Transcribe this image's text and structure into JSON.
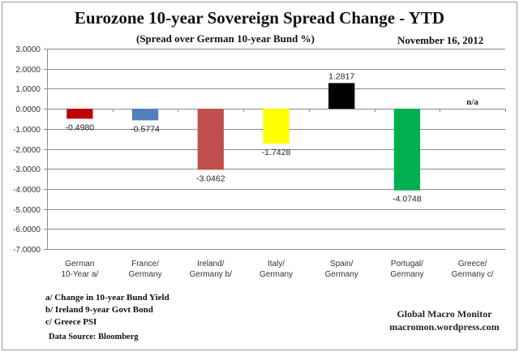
{
  "chart_data": {
    "type": "bar",
    "title": "Eurozone 10-year Sovereign Spread Change - YTD",
    "subtitle": "(Spread over German 10-year Bund %)",
    "date": "November 16,  2012",
    "xlabel": "",
    "ylabel": "",
    "ylim": [
      -7,
      3
    ],
    "ytick_step": 1,
    "ytick_format_decimals": 4,
    "grid": true,
    "legend": "none",
    "categories": [
      [
        "German",
        "10-Year a/"
      ],
      [
        "France/",
        "Germany"
      ],
      [
        "Ireland/",
        "Germany b/"
      ],
      [
        "Italy/",
        "Germany"
      ],
      [
        "Spain/",
        "Germany"
      ],
      [
        "Portugal/",
        "Germany"
      ],
      [
        "Greece/",
        "Germany c/"
      ]
    ],
    "values": [
      -0.498,
      -0.5774,
      -3.0462,
      -1.7428,
      1.2817,
      -4.0748,
      null
    ],
    "data_labels": [
      "-0.4980",
      "-0.5774",
      "-3.0462",
      "-1.7428",
      "1.2817",
      "-4.0748",
      "n/a"
    ],
    "colors": [
      "#c00000",
      "#4f81bd",
      "#c0504d",
      "#ffff00",
      "#000000",
      "#00b050",
      "#ffffff"
    ]
  },
  "footnotes": [
    "a/ Change in 10-year Bund Yield",
    "b/  Ireland 9-year Govt Bond",
    "c/  Greece PSI"
  ],
  "source": "Data Source:  Bloomberg",
  "brand": {
    "name": "Global Macro Monitor",
    "site": "macromon.wordpress.com"
  }
}
